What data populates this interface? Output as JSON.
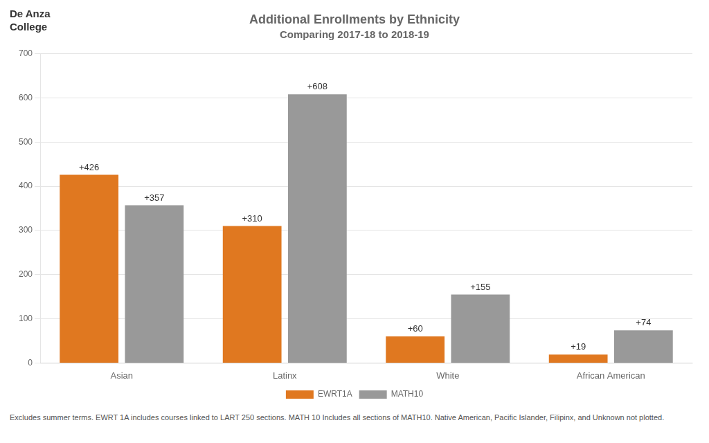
{
  "chart_data": {
    "type": "bar",
    "title": "Additional Enrollments by Ethnicity",
    "subtitle": "Comparing 2017-18 to 2018-19",
    "annotations": [
      "De Anza",
      "College",
      "Excludes summer terms. EWRT 1A includes courses linked to LART 250 sections. MATH 10 Includes all sections of MATH10. Native American, Pacific Islander, Filipinx, and Unknown not plotted."
    ],
    "categories": [
      "Asian",
      "Latinx",
      "White",
      "African American"
    ],
    "series": [
      {
        "name": "EWRT1A",
        "color": "#E07820",
        "values": [
          426,
          310,
          60,
          19
        ],
        "value_labels": [
          "+426",
          "+310",
          "+60",
          "+19"
        ]
      },
      {
        "name": "MATH10",
        "color": "#999999",
        "values": [
          357,
          608,
          155,
          74
        ],
        "value_labels": [
          "+357",
          "+608",
          "+155",
          "+74"
        ]
      }
    ],
    "ylim": [
      0,
      700
    ],
    "yticks": [
      0,
      100,
      200,
      300,
      400,
      500,
      600,
      700
    ],
    "grid": true,
    "legend": "bottom",
    "data_labels": true
  }
}
